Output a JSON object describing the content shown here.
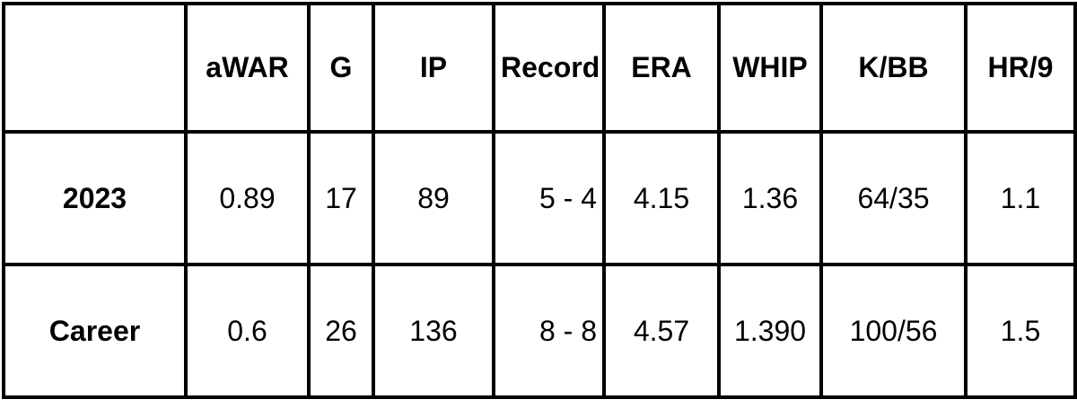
{
  "table": {
    "headers": [
      "aWAR",
      "G",
      "IP",
      "Record",
      "ERA",
      "WHIP",
      "K/BB",
      "HR/9"
    ],
    "rows": [
      [
        "2023",
        "0.89",
        "17",
        "89",
        "5 - 4",
        "4.15",
        "1.36",
        "64/35",
        "1.1"
      ],
      [
        "Career",
        "0.6",
        "26",
        "136",
        "8 - 8",
        "4.57",
        "1.390",
        "100/56",
        "1.5"
      ]
    ]
  }
}
